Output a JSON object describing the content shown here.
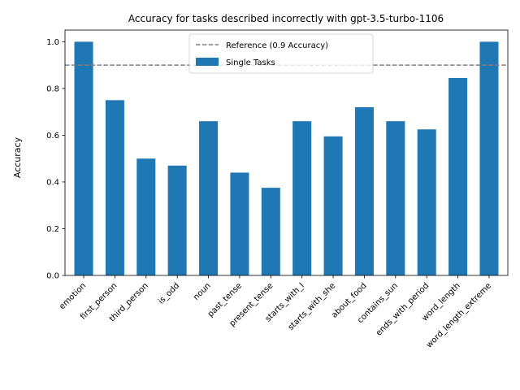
{
  "chart_data": {
    "type": "bar",
    "title": "Accuracy for tasks described incorrectly with gpt-3.5-turbo-1106",
    "xlabel": "",
    "ylabel": "Accuracy",
    "ylim": [
      0,
      1.05
    ],
    "yticks": [
      "0.0",
      "0.2",
      "0.4",
      "0.6",
      "0.8",
      "1.0"
    ],
    "ytick_values": [
      0,
      0.2,
      0.4,
      0.6,
      0.8,
      1.0
    ],
    "categories": [
      "emotion",
      "first_person",
      "third_person",
      "is_odd",
      "noun",
      "past_tense",
      "present_tense",
      "starts_with_I",
      "starts_with_she",
      "about_food",
      "contains_sun",
      "ends_with_period",
      "word_length",
      "word_length_extreme"
    ],
    "series": [
      {
        "name": "Single Tasks",
        "color": "#1f77b4",
        "values": [
          1.0,
          0.75,
          0.5,
          0.47,
          0.66,
          0.44,
          0.375,
          0.66,
          0.595,
          0.72,
          0.66,
          0.625,
          0.845,
          1.0
        ]
      }
    ],
    "reference_line": {
      "label": "Reference (0.9 Accuracy)",
      "value": 0.9,
      "color": "#808080",
      "style": "dashed"
    },
    "legend": {
      "placement": "top-center"
    },
    "grid": false
  }
}
